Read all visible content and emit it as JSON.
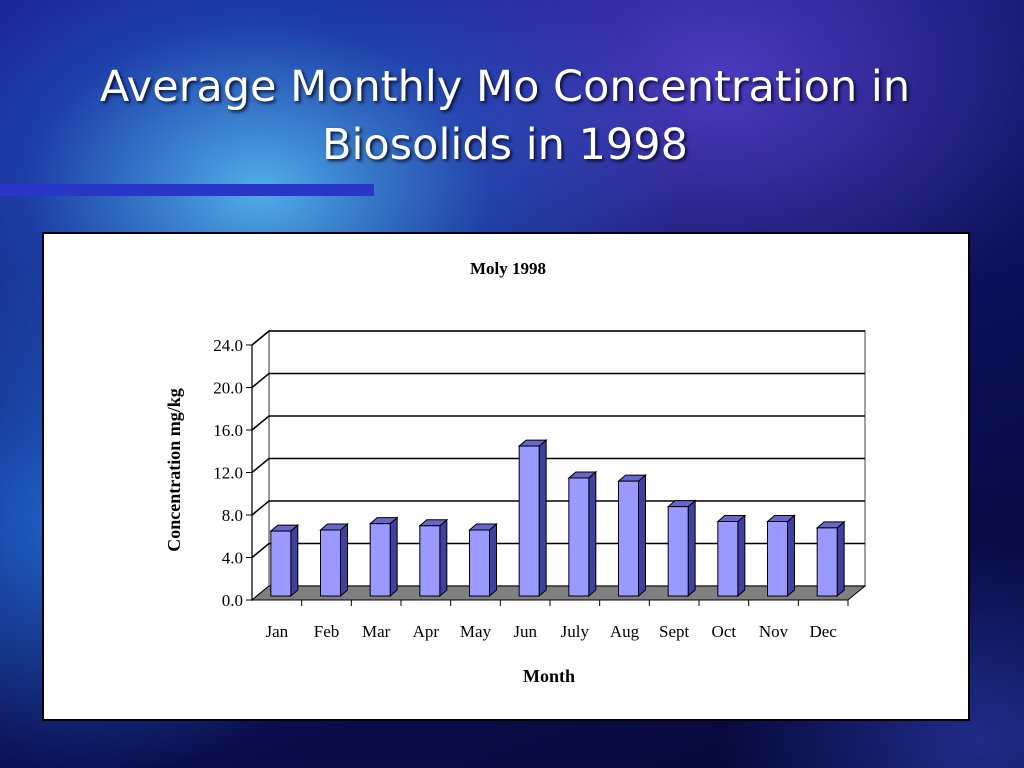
{
  "slide": {
    "title": "Average Monthly Mo Concentration in Biosolids in 1998"
  },
  "chart_data": {
    "type": "bar",
    "title": "Moly 1998",
    "xlabel": "Month",
    "ylabel": "Concentration  mg/kg",
    "categories": [
      "Jan",
      "Feb",
      "Mar",
      "Apr",
      "May",
      "Jun",
      "July",
      "Aug",
      "Sept",
      "Oct",
      "Nov",
      "Dec"
    ],
    "values": [
      6.3,
      6.4,
      7.0,
      6.8,
      6.4,
      14.3,
      11.3,
      11.0,
      8.6,
      7.2,
      7.2,
      6.6
    ],
    "ylim": [
      0,
      24
    ],
    "yticks": [
      "0.0",
      "4.0",
      "8.0",
      "12.0",
      "16.0",
      "20.0",
      "24.0"
    ],
    "grid": true,
    "bar_color": "#9999ff"
  }
}
